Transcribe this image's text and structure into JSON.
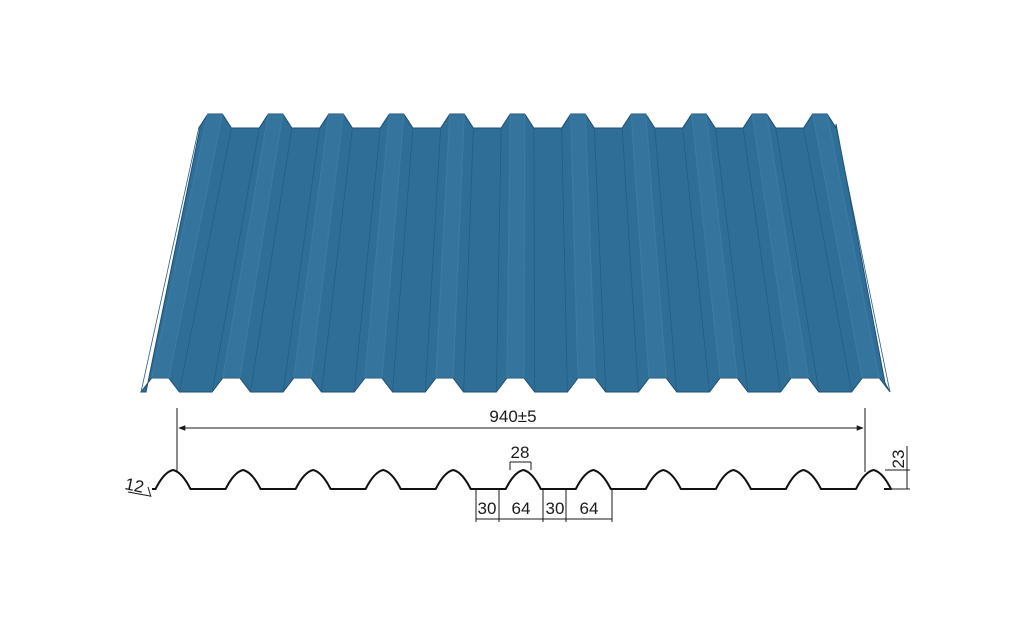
{
  "sheet": {
    "color": "#2f6e97",
    "ridge_count": 11
  },
  "dimensions": {
    "total_width": "940±5",
    "top_flat": "28",
    "height": "23",
    "edge": "12",
    "valley_left": "30",
    "pitch_left": "64",
    "valley_right": "30",
    "pitch_right": "64"
  }
}
